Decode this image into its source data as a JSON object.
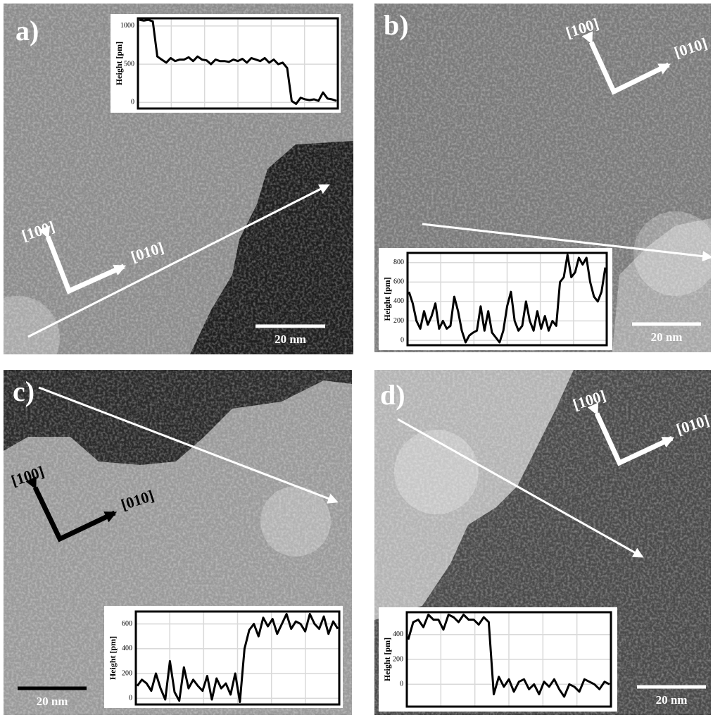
{
  "panels": [
    {
      "label": "a)",
      "dir_100": "[100]",
      "dir_010": "[010]",
      "scale_bar": "20 nm"
    },
    {
      "label": "b)",
      "dir_100": "[100]",
      "dir_010": "[010]",
      "scale_bar": "20 nm"
    },
    {
      "label": "c)",
      "dir_100": "[100]",
      "dir_010": "[010]",
      "scale_bar": "20 nm"
    },
    {
      "label": "d)",
      "dir_100": "[100]",
      "dir_010": "[010]",
      "scale_bar": "20 nm"
    }
  ],
  "chart_data": [
    {
      "type": "line",
      "y_label": "Height [pm]",
      "ylim": [
        -80,
        1100
      ],
      "yticks": [
        0,
        500,
        1000
      ],
      "grid": true,
      "series": [
        {
          "color": "#000000",
          "values": [
            1080,
            1070,
            1080,
            1060,
            600,
            560,
            520,
            580,
            540,
            560,
            560,
            590,
            540,
            600,
            560,
            550,
            500,
            560,
            540,
            540,
            530,
            560,
            540,
            570,
            520,
            580,
            560,
            540,
            580,
            520,
            560,
            500,
            520,
            450,
            20,
            -20,
            60,
            40,
            30,
            40,
            20,
            130,
            50,
            40,
            20
          ]
        }
      ]
    },
    {
      "type": "line",
      "y_label": "Height [pm]",
      "ylim": [
        -50,
        900
      ],
      "yticks": [
        0,
        200,
        400,
        600,
        800
      ],
      "grid": true,
      "series": [
        {
          "color": "#000000",
          "values": [
            500,
            380,
            200,
            120,
            300,
            160,
            250,
            380,
            120,
            200,
            120,
            150,
            450,
            300,
            100,
            -20,
            50,
            80,
            100,
            350,
            100,
            300,
            80,
            30,
            -20,
            100,
            350,
            500,
            200,
            100,
            150,
            400,
            200,
            100,
            300,
            120,
            250,
            100,
            200,
            150,
            600,
            650,
            880,
            650,
            700,
            850,
            780,
            850,
            600,
            450,
            400,
            500,
            750
          ]
        }
      ]
    },
    {
      "type": "line",
      "y_label": "Height [pm]",
      "ylim": [
        -50,
        700
      ],
      "yticks": [
        0,
        200,
        400,
        600
      ],
      "grid": true,
      "series": [
        {
          "color": "#000000",
          "values": [
            100,
            150,
            120,
            60,
            200,
            80,
            -10,
            300,
            50,
            -20,
            250,
            80,
            150,
            100,
            60,
            180,
            -10,
            160,
            80,
            120,
            30,
            200,
            -30,
            400,
            550,
            600,
            500,
            650,
            580,
            640,
            520,
            600,
            680,
            560,
            620,
            600,
            540,
            680,
            600,
            560,
            660,
            520,
            620,
            560
          ]
        }
      ]
    },
    {
      "type": "line",
      "y_label": "Height [pm]",
      "ylim": [
        -180,
        580
      ],
      "yticks": [
        0,
        200,
        400
      ],
      "grid": true,
      "series": [
        {
          "color": "#000000",
          "values": [
            360,
            500,
            520,
            460,
            560,
            520,
            520,
            440,
            560,
            540,
            500,
            560,
            520,
            520,
            480,
            540,
            500,
            -80,
            60,
            -20,
            40,
            -60,
            20,
            40,
            -40,
            0,
            -80,
            20,
            -20,
            40,
            -40,
            -100,
            0,
            -20,
            -60,
            40,
            20,
            0,
            -40,
            20,
            0
          ]
        }
      ]
    }
  ]
}
